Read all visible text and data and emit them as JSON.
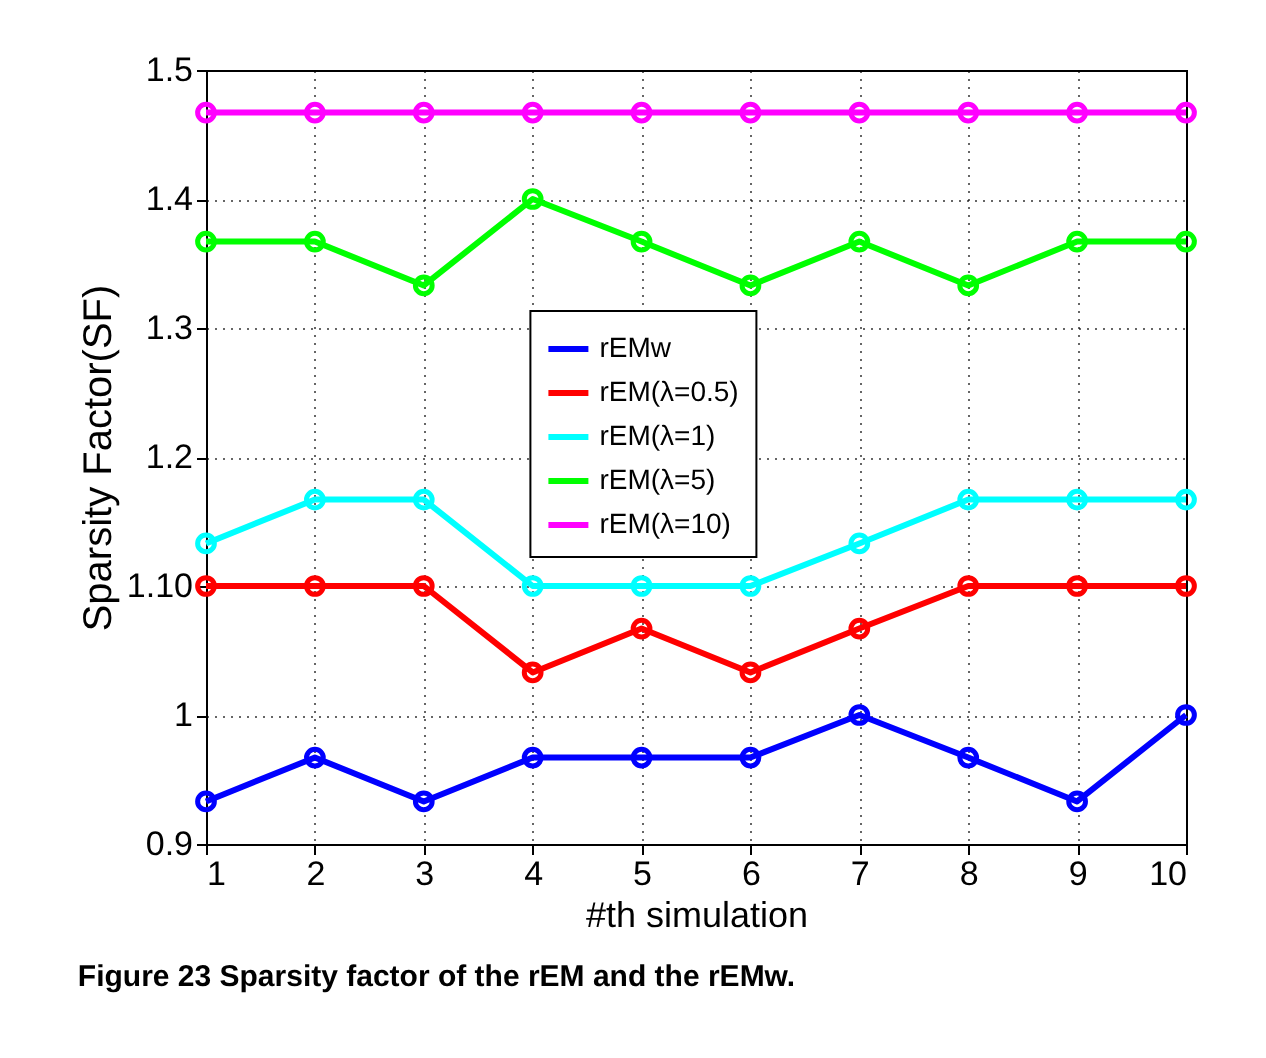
{
  "chart_data": {
    "type": "line",
    "xlabel": "#th simulation",
    "ylabel": "Sparsity Factor(SF)",
    "x": [
      1,
      2,
      3,
      4,
      5,
      6,
      7,
      8,
      9,
      10
    ],
    "series": [
      {
        "name": "rEMw",
        "color": "#0000ff",
        "values": [
          0.933,
          0.967,
          0.933,
          0.967,
          0.967,
          0.967,
          1.0,
          0.967,
          0.933,
          1.0
        ]
      },
      {
        "name": "rEM(λ=0.5)",
        "color": "#ff0000",
        "values": [
          1.1,
          1.1,
          1.1,
          1.033,
          1.067,
          1.033,
          1.067,
          1.1,
          1.1,
          1.1
        ]
      },
      {
        "name": "rEM(λ=1)",
        "color": "#00ffff",
        "values": [
          1.133,
          1.167,
          1.167,
          1.1,
          1.1,
          1.1,
          1.133,
          1.167,
          1.167,
          1.167
        ]
      },
      {
        "name": "rEM(λ=5)",
        "color": "#00ff00",
        "values": [
          1.367,
          1.367,
          1.333,
          1.4,
          1.367,
          1.333,
          1.367,
          1.333,
          1.367,
          1.367
        ]
      },
      {
        "name": "rEM(λ=10)",
        "color": "#ff00ff",
        "values": [
          1.467,
          1.467,
          1.467,
          1.467,
          1.467,
          1.467,
          1.467,
          1.467,
          1.467,
          1.467
        ]
      }
    ],
    "xlim": [
      1,
      10
    ],
    "xticks": [
      1,
      2,
      3,
      4,
      5,
      6,
      7,
      8,
      9,
      10
    ],
    "ylim": [
      0.9,
      1.5
    ],
    "yticks": [
      0.9,
      1,
      {
        "value": 1.1,
        "label": "1.10"
      },
      1.2,
      1.3,
      1.4,
      1.5
    ],
    "grid": true,
    "legend": "center",
    "marker": "circle",
    "line_style": "solid",
    "annotations": [
      "Figure 23 Sparsity factor of the rEM and the rEMw."
    ]
  }
}
